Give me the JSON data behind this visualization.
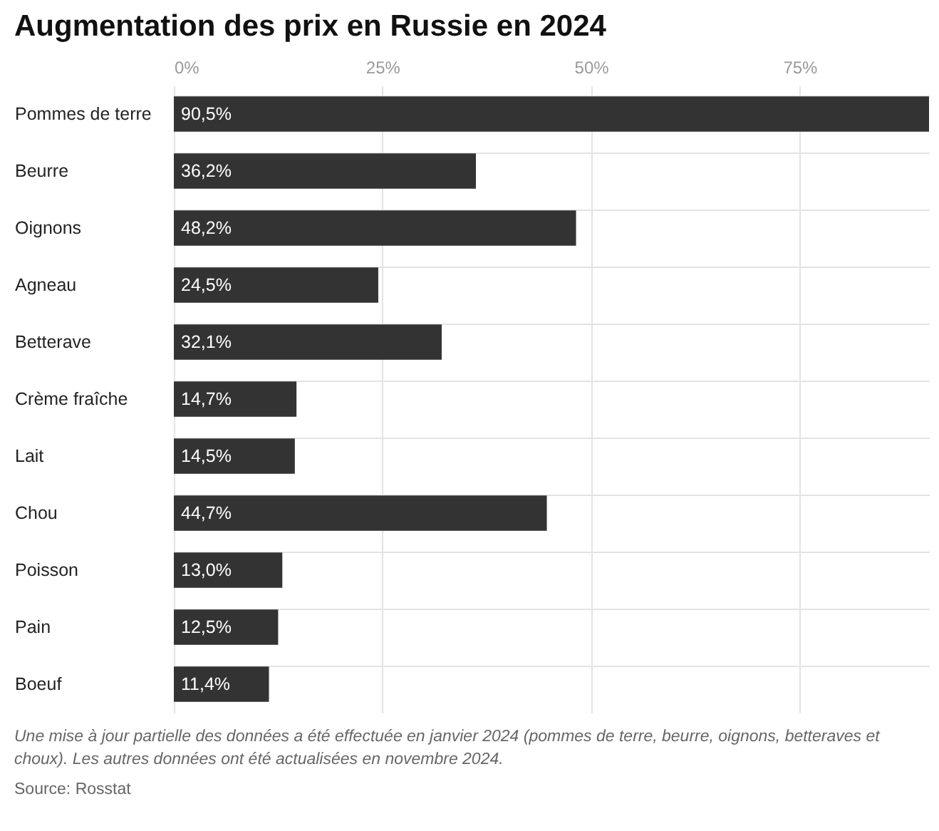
{
  "chart_data": {
    "type": "bar",
    "orientation": "horizontal",
    "title": "Augmentation des prix en Russie en 2024",
    "categories": [
      "Pommes de terre",
      "Beurre",
      "Oignons",
      "Agneau",
      "Betterave",
      "Crème fraîche",
      "Lait",
      "Chou",
      "Poisson",
      "Pain",
      "Boeuf"
    ],
    "values": [
      90.5,
      36.2,
      48.2,
      24.5,
      32.1,
      14.7,
      14.5,
      44.7,
      13.0,
      12.5,
      11.4
    ],
    "value_labels": [
      "90,5%",
      "36,2%",
      "48,2%",
      "24,5%",
      "32,1%",
      "14,7%",
      "14,5%",
      "44,7%",
      "13,0%",
      "12,5%",
      "11,4%"
    ],
    "color": "#333333",
    "xlim": [
      0,
      90.5
    ],
    "xticks": [
      {
        "value": 0,
        "label": "0%"
      },
      {
        "value": 25,
        "label": "25%"
      },
      {
        "value": 50,
        "label": "50%"
      },
      {
        "value": 75,
        "label": "75%"
      }
    ],
    "grid": true,
    "annotations": [
      "Une mise à jour partielle des données a été effectuée en janvier 2024 (pommes de terre, beurre, oignons, betteraves et choux). Les autres données ont été actualisées en novembre 2024.",
      "Source: Rosstat"
    ]
  }
}
